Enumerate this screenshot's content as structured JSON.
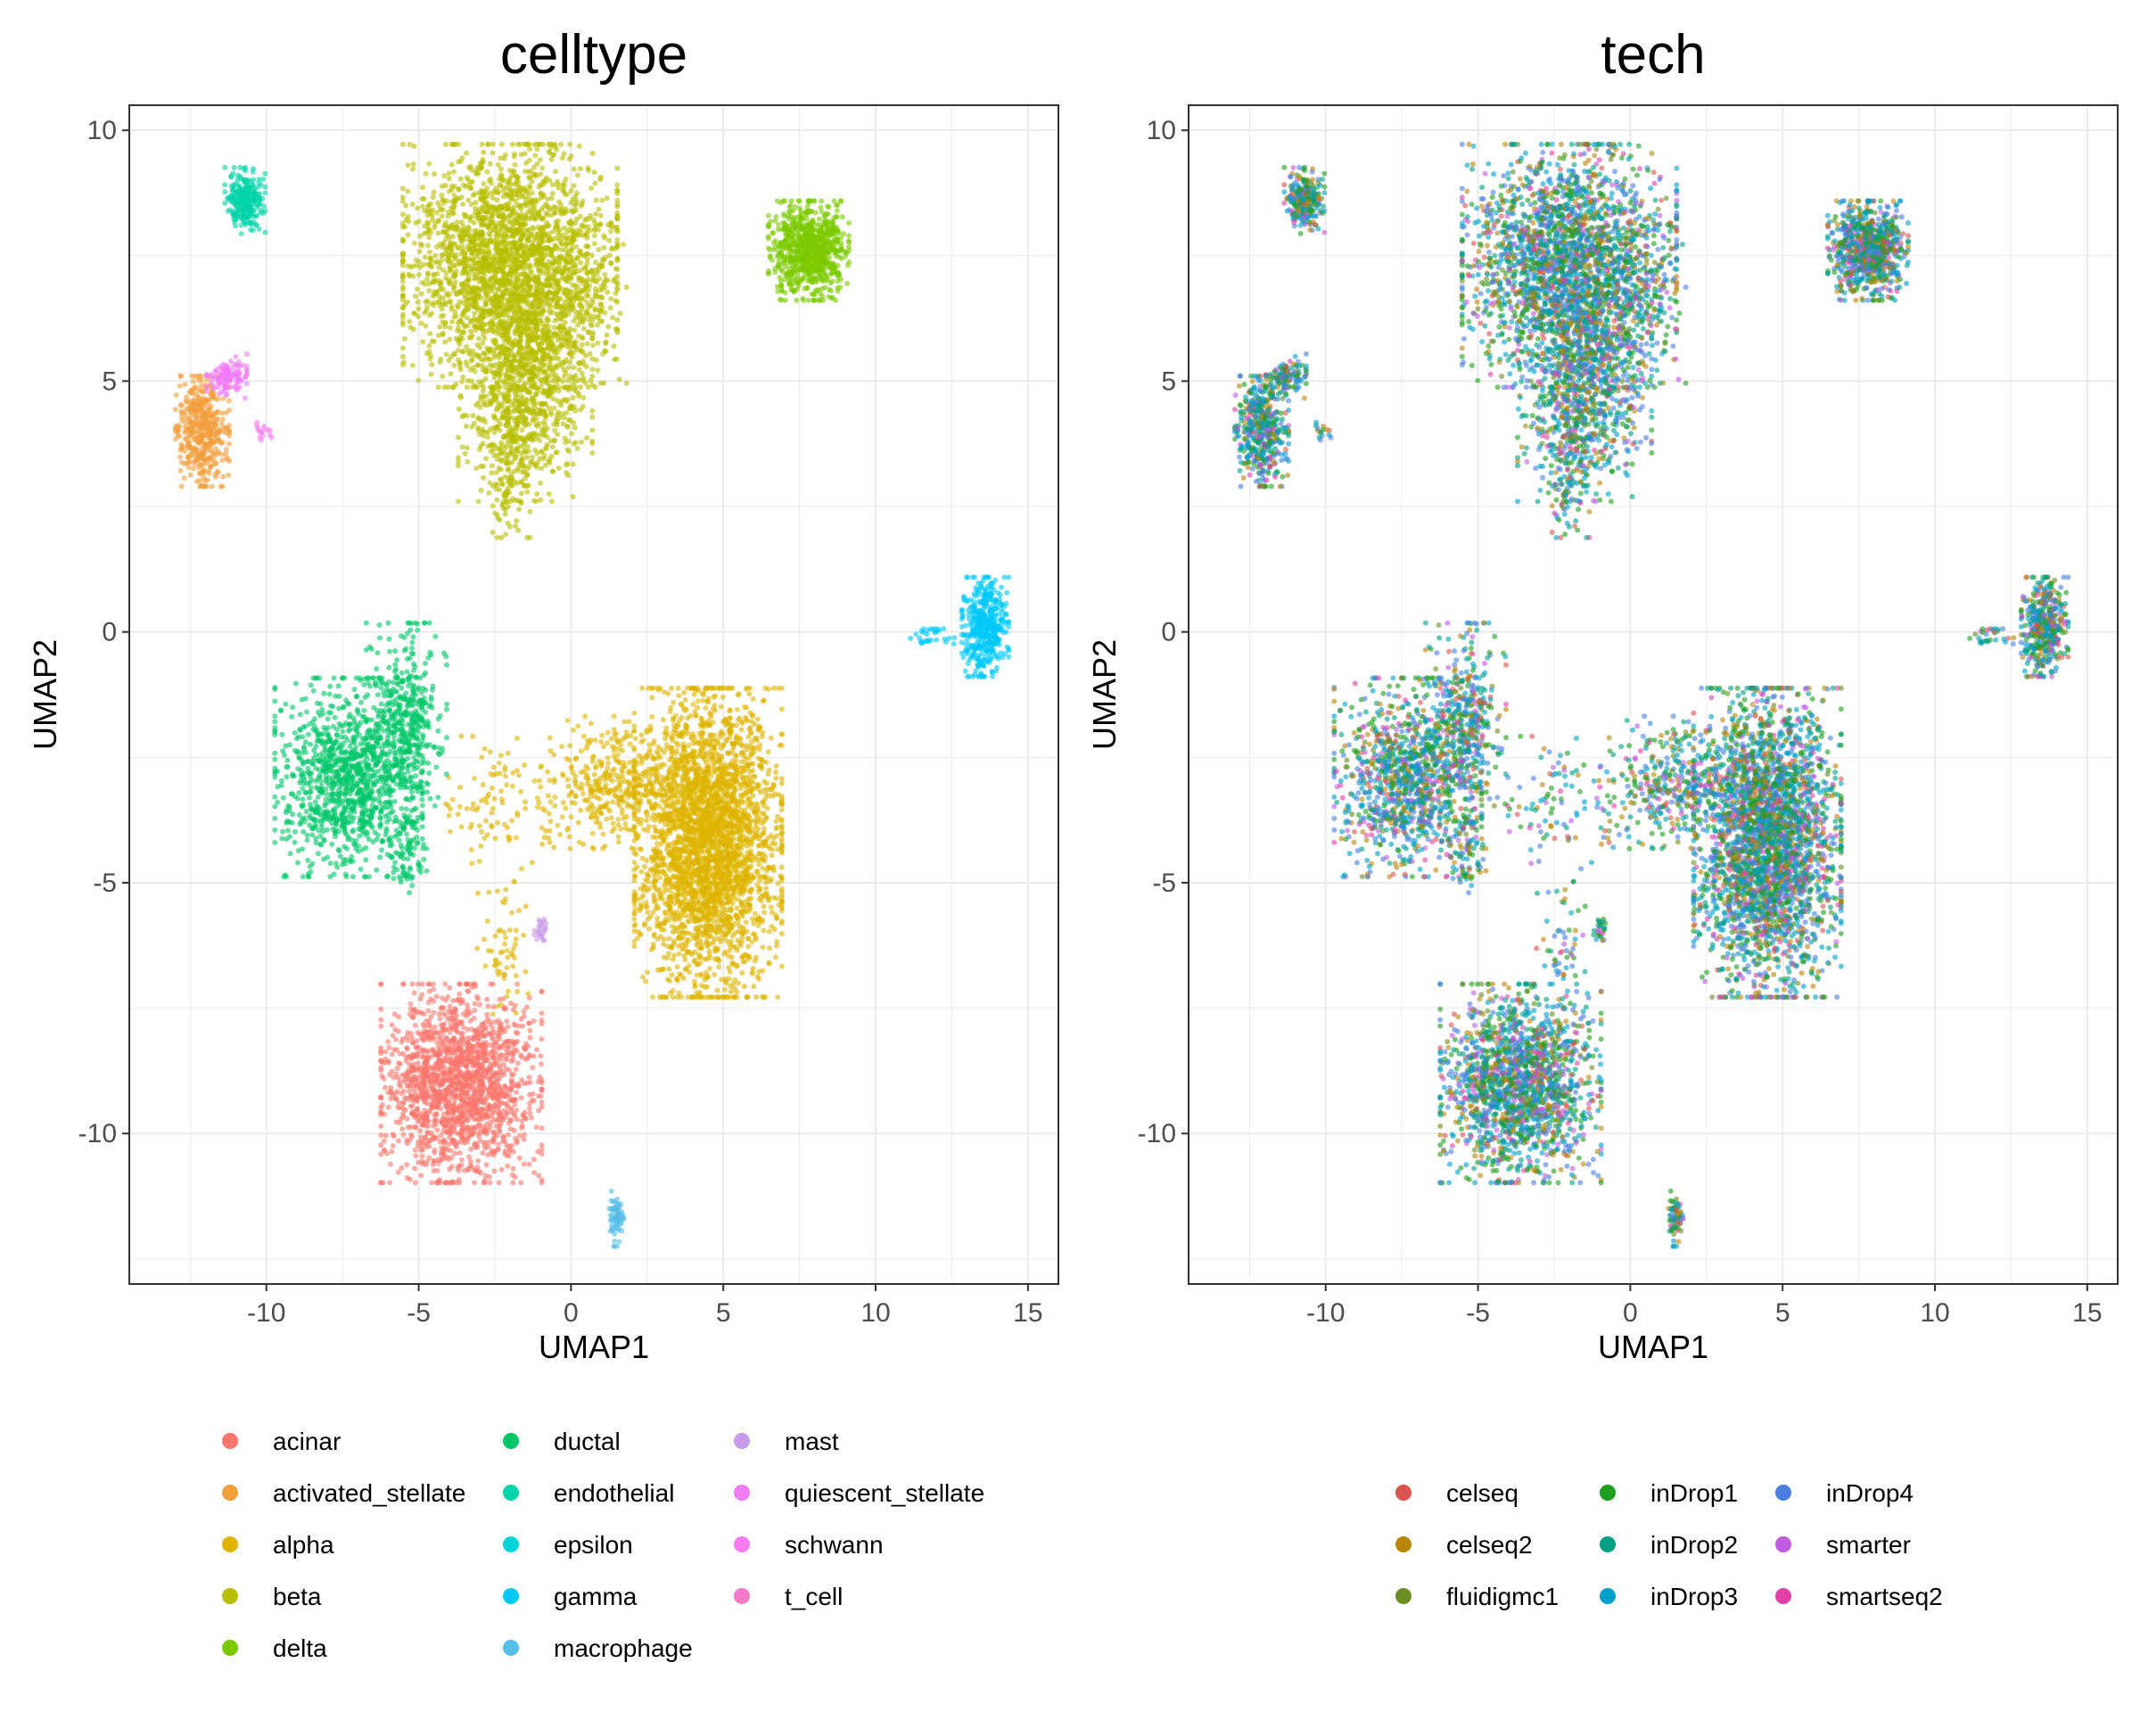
{
  "chart_data": [
    {
      "type": "scatter",
      "title": "celltype",
      "xlabel": "UMAP1",
      "ylabel": "UMAP2",
      "xlim": [
        -14.5,
        16
      ],
      "ylim": [
        -13,
        10.5
      ],
      "x_ticks": [
        -10,
        -5,
        0,
        5,
        10,
        15
      ],
      "y_ticks": [
        -10,
        -5,
        0,
        5,
        10
      ],
      "x_tick_labels": [
        "-10",
        "-5",
        "0",
        "5",
        "10",
        "15"
      ],
      "y_tick_labels": [
        "-10",
        "-5",
        "0",
        "5",
        "10"
      ],
      "grid": true,
      "legend_position": "bottom",
      "legend_columns": 3,
      "legend_rows": 5,
      "series": [
        {
          "name": "acinar",
          "color": "#F8766D"
        },
        {
          "name": "activated_stellate",
          "color": "#F29F3D"
        },
        {
          "name": "alpha",
          "color": "#DEB400"
        },
        {
          "name": "beta",
          "color": "#B8BE00"
        },
        {
          "name": "delta",
          "color": "#7CC900"
        },
        {
          "name": "ductal",
          "color": "#00C667"
        },
        {
          "name": "endothelial",
          "color": "#00D4A8"
        },
        {
          "name": "epsilon",
          "color": "#00D4D8"
        },
        {
          "name": "gamma",
          "color": "#00C8F8"
        },
        {
          "name": "macrophage",
          "color": "#56BEE8"
        },
        {
          "name": "mast",
          "color": "#C89BE8"
        },
        {
          "name": "quiescent_stellate",
          "color": "#F07CF8"
        },
        {
          "name": "schwann",
          "color": "#F87CF0"
        },
        {
          "name": "t_cell",
          "color": "#F27CC8"
        }
      ],
      "clusters": [
        {
          "series": "beta",
          "cx": -2.0,
          "cy": 7.3,
          "sx": 1.6,
          "sy": 1.1,
          "n": 2400
        },
        {
          "series": "beta",
          "cx": -1.5,
          "cy": 4.8,
          "sx": 1.0,
          "sy": 1.0,
          "n": 900
        },
        {
          "series": "beta",
          "cx": -2.0,
          "cy": 3.2,
          "sx": 0.4,
          "sy": 0.6,
          "n": 120
        },
        {
          "series": "beta",
          "cx": 0.5,
          "cy": 6.5,
          "sx": 0.6,
          "sy": 0.7,
          "n": 120
        },
        {
          "series": "alpha",
          "cx": 4.5,
          "cy": -4.2,
          "sx": 1.1,
          "sy": 1.4,
          "n": 3000
        },
        {
          "series": "alpha",
          "cx": 1.5,
          "cy": -3.0,
          "sx": 1.0,
          "sy": 0.6,
          "n": 350
        },
        {
          "series": "alpha",
          "cx": -2.0,
          "cy": -3.4,
          "sx": 1.2,
          "sy": 0.6,
          "n": 120
        },
        {
          "series": "alpha",
          "cx": -2.2,
          "cy": -6.3,
          "sx": 0.4,
          "sy": 0.6,
          "n": 60
        },
        {
          "series": "ductal",
          "cx": -7.3,
          "cy": -2.9,
          "sx": 1.1,
          "sy": 0.9,
          "n": 1100
        },
        {
          "series": "ductal",
          "cx": -5.4,
          "cy": -1.8,
          "sx": 0.6,
          "sy": 0.9,
          "n": 400
        },
        {
          "series": "ductal",
          "cx": -5.4,
          "cy": -4.4,
          "sx": 0.3,
          "sy": 0.4,
          "n": 80
        },
        {
          "series": "acinar",
          "cx": -3.6,
          "cy": -9.0,
          "sx": 1.2,
          "sy": 0.9,
          "n": 1700
        },
        {
          "series": "delta",
          "cx": 7.8,
          "cy": 7.6,
          "sx": 0.6,
          "sy": 0.45,
          "n": 800
        },
        {
          "series": "gamma",
          "cx": 13.6,
          "cy": 0.1,
          "sx": 0.35,
          "sy": 0.45,
          "n": 450
        },
        {
          "series": "gamma",
          "cx": 11.8,
          "cy": -0.1,
          "sx": 0.4,
          "sy": 0.1,
          "n": 30
        },
        {
          "series": "endothelial",
          "cx": -10.7,
          "cy": 8.6,
          "sx": 0.3,
          "sy": 0.3,
          "n": 260
        },
        {
          "series": "activated_stellate",
          "cx": -12.1,
          "cy": 4.0,
          "sx": 0.4,
          "sy": 0.5,
          "n": 450
        },
        {
          "series": "quiescent_stellate",
          "cx": -11.3,
          "cy": 5.1,
          "sx": 0.3,
          "sy": 0.2,
          "n": 120
        },
        {
          "series": "schwann",
          "cx": -10.1,
          "cy": 4.0,
          "sx": 0.15,
          "sy": 0.08,
          "n": 15
        },
        {
          "series": "macrophage",
          "cx": 1.5,
          "cy": -11.7,
          "sx": 0.12,
          "sy": 0.25,
          "n": 70
        },
        {
          "series": "mast",
          "cx": -1.0,
          "cy": -5.9,
          "sx": 0.1,
          "sy": 0.2,
          "n": 25
        }
      ]
    },
    {
      "type": "scatter",
      "title": "tech",
      "xlabel": "UMAP1",
      "ylabel": "UMAP2",
      "xlim": [
        -14.5,
        16
      ],
      "ylim": [
        -13,
        10.5
      ],
      "x_ticks": [
        -10,
        -5,
        0,
        5,
        10,
        15
      ],
      "y_ticks": [
        -10,
        -5,
        0,
        5,
        10
      ],
      "x_tick_labels": [
        "-10",
        "-5",
        "0",
        "5",
        "10",
        "15"
      ],
      "y_tick_labels": [
        "-10",
        "-5",
        "0",
        "5",
        "10"
      ],
      "grid": true,
      "legend_position": "bottom",
      "legend_columns": 3,
      "legend_rows": 3,
      "series": [
        {
          "name": "celseq",
          "color": "#D9544F"
        },
        {
          "name": "celseq2",
          "color": "#B8860B"
        },
        {
          "name": "fluidigmc1",
          "color": "#6B8E23"
        },
        {
          "name": "inDrop1",
          "color": "#1E9E1E"
        },
        {
          "name": "inDrop2",
          "color": "#00A085"
        },
        {
          "name": "inDrop3",
          "color": "#00A0C8"
        },
        {
          "name": "inDrop4",
          "color": "#4A7FE0"
        },
        {
          "name": "smarter",
          "color": "#C05AE0"
        },
        {
          "name": "smartseq2",
          "color": "#E040A8"
        }
      ]
    }
  ]
}
